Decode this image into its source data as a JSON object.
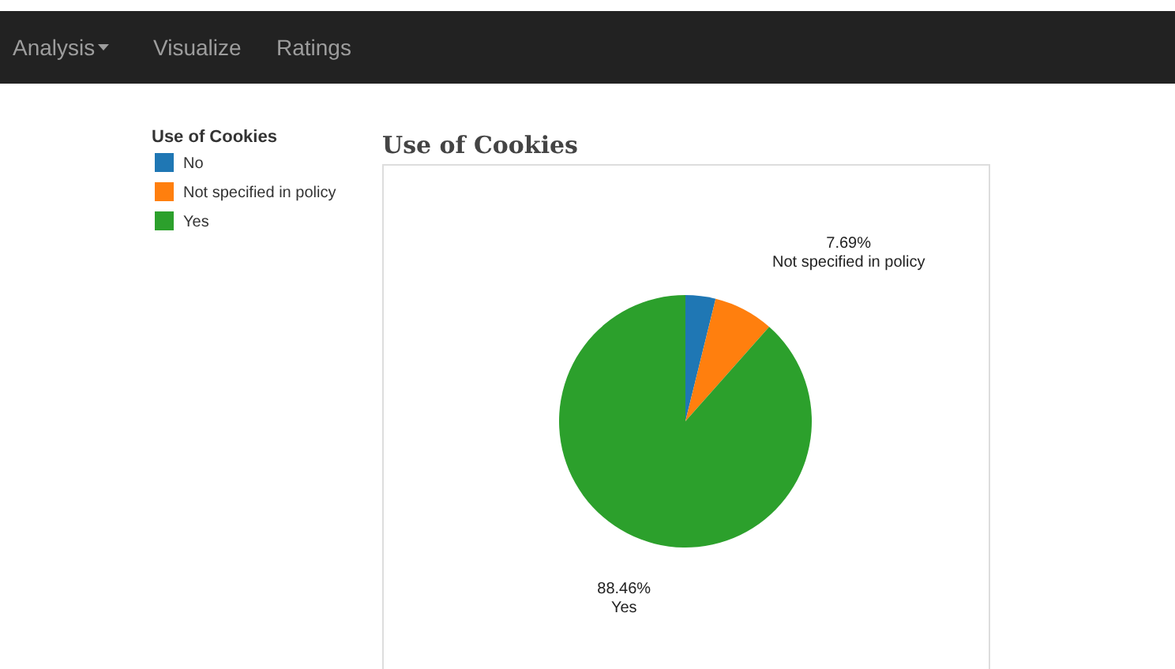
{
  "chart_data": {
    "type": "pie",
    "title": "Use of Cookies",
    "legend_title": "Use of Cookies",
    "legend": "left",
    "categories": [
      "No",
      "Not specified in policy",
      "Yes"
    ],
    "values": [
      3.85,
      7.69,
      88.46
    ],
    "colors": [
      "#1f77b4",
      "#ff7f0e",
      "#2ca02c"
    ],
    "value_labels": [
      null,
      "7.69%",
      "88.46%"
    ],
    "annotations": [
      "Analysis",
      "Visualize",
      "Ratings"
    ]
  }
}
